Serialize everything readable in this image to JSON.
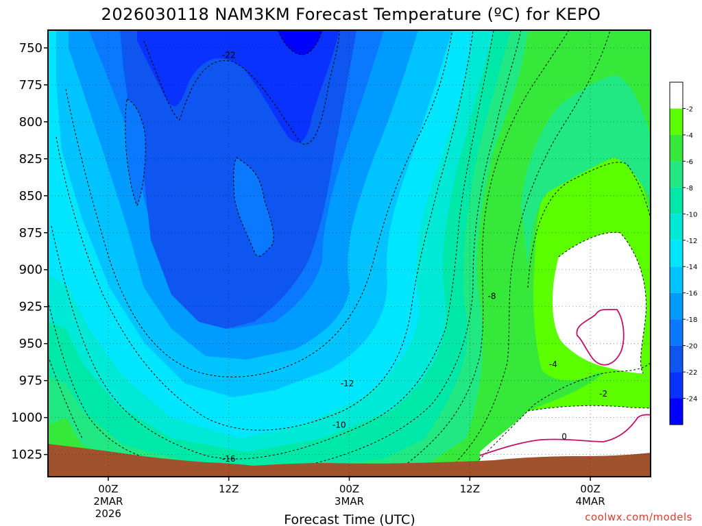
{
  "chart_data": {
    "type": "contour",
    "title": "2026030118 NAM3KM Forecast Temperature (ºC) for KEPO",
    "xlabel": "Forecast Time (UTC)",
    "ylabel": "",
    "credit": "coolwx.com/models",
    "x_ticks": [
      {
        "line1": "00Z",
        "line2": "2MAR",
        "line3": "2026",
        "hours": 6
      },
      {
        "line1": "12Z",
        "line2": "",
        "line3": "",
        "hours": 18
      },
      {
        "line1": "00Z",
        "line2": "3MAR",
        "line3": "",
        "hours": 30
      },
      {
        "line1": "12Z",
        "line2": "",
        "line3": "",
        "hours": 42
      },
      {
        "line1": "00Z",
        "line2": "4MAR",
        "line3": "",
        "hours": 54
      }
    ],
    "x_range_hours": [
      0,
      60
    ],
    "y_ticks": [
      "750",
      "775",
      "800",
      "825",
      "850",
      "875",
      "900",
      "925",
      "950",
      "975",
      "1000",
      "1025"
    ],
    "y_range_hpa": [
      738,
      1040
    ],
    "colorbar": {
      "ticks": [
        "-2",
        "-4",
        "-6",
        "-8",
        "-10",
        "-12",
        "-14",
        "-16",
        "-18",
        "-20",
        "-22",
        "-24"
      ],
      "colors": [
        "#ffffff",
        "#5cff00",
        "#36e83a",
        "#21e882",
        "#00e8a8",
        "#00e8d6",
        "#00e6ff",
        "#00c3ff",
        "#009bff",
        "#0a78ff",
        "#0f55f0",
        "#0a32ff",
        "#0000ff"
      ]
    },
    "contour_labels": [
      {
        "text": "-22",
        "hours": 18.0,
        "hpa": 755
      },
      {
        "text": "-16",
        "hours": 18.0,
        "hpa": 1028
      },
      {
        "text": "-12",
        "hours": 29.8,
        "hpa": 977
      },
      {
        "text": "-10",
        "hours": 29.0,
        "hpa": 1005
      },
      {
        "text": "-8",
        "hours": 44.2,
        "hpa": 918
      },
      {
        "text": "-4",
        "hours": 50.3,
        "hpa": 964
      },
      {
        "text": "-2",
        "hours": 55.3,
        "hpa": 984
      },
      {
        "text": "0",
        "hours": 51.4,
        "hpa": 1013
      }
    ],
    "ground_color": "#a0522d",
    "zero_line_color": "#c0106a",
    "grid": true
  }
}
